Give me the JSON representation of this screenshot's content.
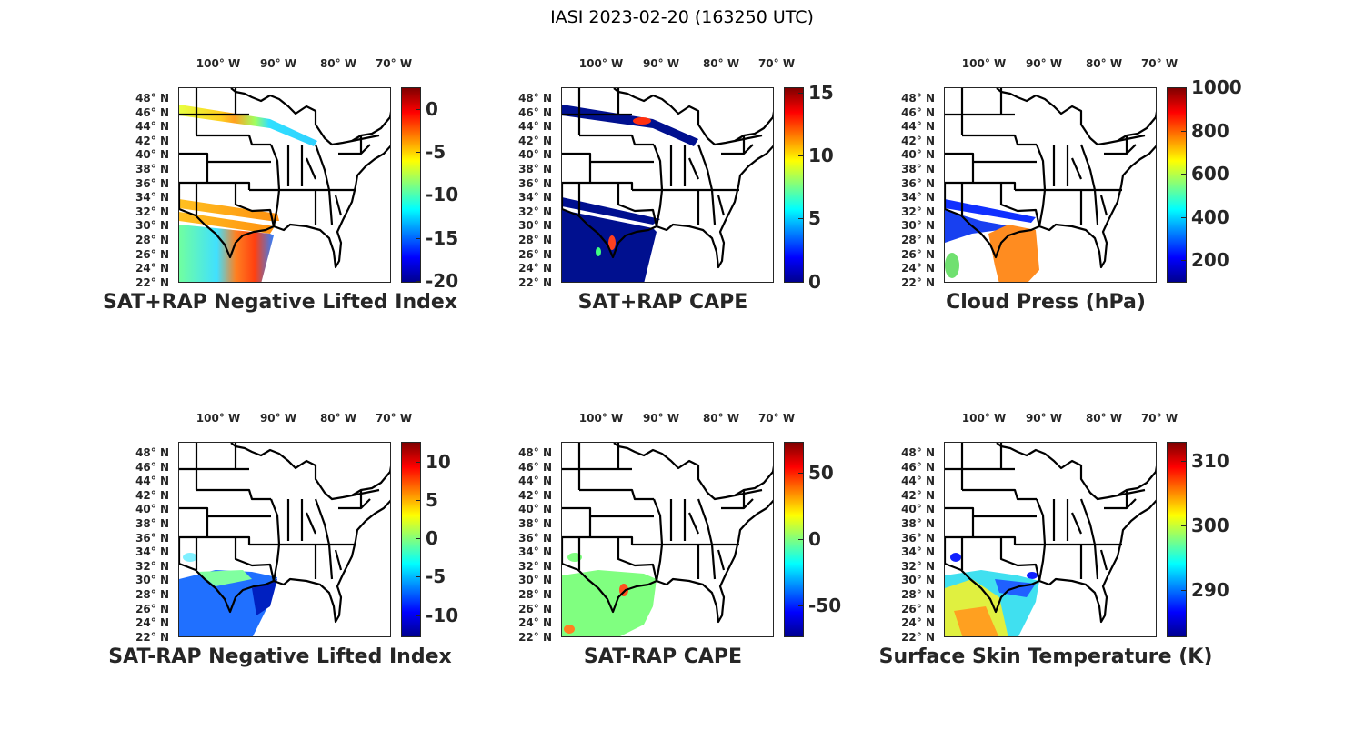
{
  "title": "IASI 2023-02-20 (163250 UTC)",
  "lon_labels": [
    "100° W",
    "90° W",
    "80° W",
    "70° W"
  ],
  "lat_labels": [
    "48° N",
    "46° N",
    "44° N",
    "42° N",
    "40° N",
    "38° N",
    "36° N",
    "34° N",
    "32° N",
    "30° N",
    "28° N",
    "26° N",
    "24° N",
    "22° N"
  ],
  "panels": [
    {
      "title": "SAT+RAP Negative Lifted Index",
      "colorbar": {
        "min": -20.2,
        "max": 2.5,
        "ticks": [
          "0",
          "-5",
          "-10",
          "-15",
          "-20"
        ],
        "tick_values": [
          0,
          -5,
          -10,
          -15,
          -20
        ]
      }
    },
    {
      "title": "SAT+RAP CAPE",
      "colorbar": {
        "min": -0.1,
        "max": 15.4,
        "ticks": [
          "0",
          "5",
          "10",
          "15"
        ],
        "tick_values": [
          0,
          5,
          10,
          15
        ]
      }
    },
    {
      "title": "Cloud Press (hPa)",
      "colorbar": {
        "min": 95,
        "max": 1000,
        "ticks": [
          "200",
          "400",
          "600",
          "800",
          "1000"
        ],
        "tick_values": [
          200,
          400,
          600,
          800,
          1000
        ]
      }
    },
    {
      "title": "SAT-RAP Negative Lifted Index",
      "colorbar": {
        "min": -12.9,
        "max": 12.6,
        "ticks": [
          "-10",
          "-5",
          "0",
          "5",
          "10"
        ],
        "tick_values": [
          -10,
          -5,
          0,
          5,
          10
        ]
      }
    },
    {
      "title": "SAT-RAP CAPE",
      "colorbar": {
        "min": -74,
        "max": 73,
        "ticks": [
          "-50",
          "0",
          "50"
        ],
        "tick_values": [
          -50,
          0,
          50
        ]
      }
    },
    {
      "title": "Surface Skin Temperature (K)",
      "colorbar": {
        "min": 282.6,
        "max": 313,
        "ticks": [
          "290",
          "300",
          "310"
        ],
        "tick_values": [
          290,
          300,
          310
        ]
      }
    }
  ]
}
